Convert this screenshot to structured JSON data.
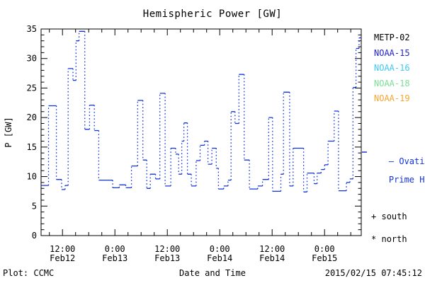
{
  "title": "Hemispheric Power [GW]",
  "footer": {
    "plot_source": "Plot: CCMC",
    "timestamp": "2015/02/15 07:45:12"
  },
  "legend": {
    "satellites": [
      {
        "label": "METP-02",
        "color": "#000000"
      },
      {
        "label": "NOAA-15",
        "color": "#2323cf"
      },
      {
        "label": "NOAA-16",
        "color": "#3fc8f4"
      },
      {
        "label": "NOAA-18",
        "color": "#7ade96"
      },
      {
        "label": "NOAA-19",
        "color": "#f7a62e"
      }
    ],
    "model_line1": "— Ovation",
    "model_line2": "Prime HPI",
    "model_color": "#1133dd",
    "south_symbol": "+",
    "south_label": "south",
    "north_symbol": "*",
    "north_label": "north"
  },
  "chart_data": {
    "type": "line",
    "subtype": "steps-with-dotted-transitions",
    "title": "Hemispheric Power [GW]",
    "xlabel": "Date and Time",
    "ylabel": "P [GW]",
    "ylim": [
      0,
      35
    ],
    "y_major_step": 5,
    "y_minor_step": 1,
    "xlim_hours_from_feb12": [
      7.1,
      80.4
    ],
    "x_minor_step_hours": 3,
    "x_major_ticks": [
      {
        "t": 12,
        "time": "12:00",
        "date": "Feb12"
      },
      {
        "t": 24,
        "time": "0:00",
        "date": "Feb13"
      },
      {
        "t": 36,
        "time": "12:00",
        "date": "Feb13"
      },
      {
        "t": 48,
        "time": "0:00",
        "date": "Feb14"
      },
      {
        "t": 60,
        "time": "12:00",
        "date": "Feb14"
      },
      {
        "t": 72,
        "time": "0:00",
        "date": "Feb15"
      }
    ],
    "series_name": "Ovation Prime HPI",
    "line_color": "#1133dd",
    "grid": false,
    "legend_position": "right-margin",
    "steps_t_hours_value_gw": [
      [
        7.1,
        8.5
      ],
      [
        8.8,
        22.0
      ],
      [
        10.6,
        9.5
      ],
      [
        11.8,
        7.8
      ],
      [
        12.6,
        8.5
      ],
      [
        13.3,
        28.3
      ],
      [
        14.4,
        26.3
      ],
      [
        15.1,
        33.0
      ],
      [
        15.8,
        34.6
      ],
      [
        17.1,
        18.0
      ],
      [
        18.2,
        22.1
      ],
      [
        19.3,
        17.8
      ],
      [
        20.3,
        9.4
      ],
      [
        23.5,
        8.1
      ],
      [
        25.0,
        8.6
      ],
      [
        26.5,
        8.1
      ],
      [
        27.8,
        11.8
      ],
      [
        29.2,
        22.9
      ],
      [
        30.4,
        12.8
      ],
      [
        31.3,
        8.0
      ],
      [
        32.1,
        10.4
      ],
      [
        33.3,
        9.6
      ],
      [
        34.3,
        24.1
      ],
      [
        35.5,
        8.4
      ],
      [
        36.8,
        14.8
      ],
      [
        37.9,
        13.8
      ],
      [
        38.6,
        10.4
      ],
      [
        39.3,
        16.0
      ],
      [
        39.8,
        19.1
      ],
      [
        40.6,
        10.4
      ],
      [
        41.5,
        8.4
      ],
      [
        42.6,
        12.7
      ],
      [
        43.5,
        15.3
      ],
      [
        44.5,
        16.0
      ],
      [
        45.3,
        12.1
      ],
      [
        46.2,
        14.8
      ],
      [
        47.2,
        11.4
      ],
      [
        47.7,
        7.9
      ],
      [
        48.9,
        8.4
      ],
      [
        49.9,
        9.4
      ],
      [
        50.6,
        21.0
      ],
      [
        51.5,
        19.0
      ],
      [
        52.4,
        27.3
      ],
      [
        53.6,
        12.8
      ],
      [
        54.8,
        7.9
      ],
      [
        56.7,
        8.4
      ],
      [
        57.8,
        9.5
      ],
      [
        59.2,
        20.0
      ],
      [
        60.1,
        7.5
      ],
      [
        62.0,
        10.4
      ],
      [
        62.6,
        24.3
      ],
      [
        64.0,
        8.4
      ],
      [
        64.8,
        14.8
      ],
      [
        67.2,
        7.4
      ],
      [
        68.0,
        10.6
      ],
      [
        69.6,
        8.8
      ],
      [
        70.3,
        10.6
      ],
      [
        71.2,
        11.2
      ],
      [
        72.0,
        12.0
      ],
      [
        72.8,
        16.0
      ],
      [
        74.2,
        21.1
      ],
      [
        75.2,
        7.6
      ],
      [
        77.0,
        9.0
      ],
      [
        77.8,
        9.6
      ],
      [
        78.5,
        25.1
      ],
      [
        79.2,
        31.7
      ],
      [
        79.9,
        33.5
      ]
    ]
  }
}
